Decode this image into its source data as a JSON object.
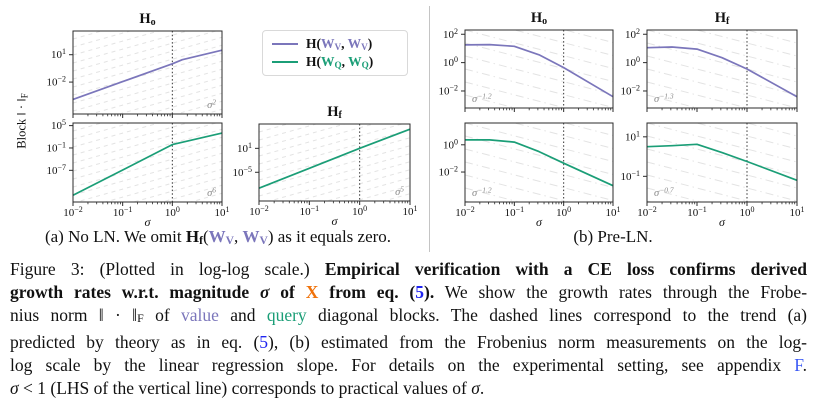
{
  "colors": {
    "purple": "#7b76bb",
    "teal": "#1b9e77",
    "orange_x": "#f0720a",
    "blue_ref": "#1f24f0",
    "blue_link": "#3b59f5",
    "hatch_gray": "#e3e3e3",
    "axis_black": "#2b2b2b",
    "trend_gray": "#8a8a8a"
  },
  "figure": {
    "ylabel": {
      "text": "Block ‖ · ‖",
      "sub": "F"
    },
    "legend": {
      "items": [
        {
          "color_key": "purple",
          "name": "H(W_V, W_V)",
          "segments": [
            {
              "t": "H(",
              "c": "b"
            },
            {
              "t": "W",
              "c": "wp"
            },
            {
              "t": "V",
              "c": "wps"
            },
            {
              "t": ", ",
              "c": "b"
            },
            {
              "t": "W",
              "c": "wp"
            },
            {
              "t": "V",
              "c": "wps"
            },
            {
              "t": ")",
              "c": "b"
            }
          ]
        },
        {
          "color_key": "teal",
          "name": "H(W_Q, W_Q)",
          "segments": [
            {
              "t": "H(",
              "c": "b"
            },
            {
              "t": "W",
              "c": "wt"
            },
            {
              "t": "Q",
              "c": "wts"
            },
            {
              "t": ", ",
              "c": "b"
            },
            {
              "t": "W",
              "c": "wt"
            },
            {
              "t": "Q",
              "c": "wts"
            },
            {
              "t": ")",
              "c": "b"
            }
          ]
        }
      ]
    },
    "subcaptions": {
      "a": {
        "segments": [
          {
            "t": "(a) No LN. We omit ",
            "c": "n"
          },
          {
            "t": "H",
            "c": "b"
          },
          {
            "t": "f",
            "c": "bsb"
          },
          {
            "t": "(",
            "c": "n"
          },
          {
            "t": "W",
            "c": "wp"
          },
          {
            "t": "V",
            "c": "wps"
          },
          {
            "t": ", ",
            "c": "n"
          },
          {
            "t": "W",
            "c": "wp"
          },
          {
            "t": "V",
            "c": "wps"
          },
          {
            "t": ") as it equals zero.",
            "c": "n"
          }
        ]
      },
      "b": {
        "segments": [
          {
            "t": "(b) Pre-LN.",
            "c": "n"
          }
        ]
      }
    }
  },
  "chart_data": {
    "type": "line",
    "scale": "log-log",
    "xlabel": "σ",
    "x_ticks_exp": [
      -2,
      -1,
      0,
      1
    ],
    "vline_exp": 0,
    "panels": [
      {
        "id": "a1",
        "group": "a",
        "title": {
          "main": "H",
          "sub": "o"
        },
        "series_name": "H(W_V, W_V)",
        "color_key": "purple",
        "ylim_exp": [
          -5.5,
          3.6
        ],
        "y_ticks_exp": [
          1,
          -2
        ],
        "x_exp": [
          -2,
          -1,
          0,
          0.2,
          1
        ],
        "y_exp": [
          -3.9,
          -1.95,
          0.0,
          0.45,
          1.5
        ],
        "trend_base": "σ",
        "trend_exp": "2",
        "trend_corner": "br",
        "x_labeled": false,
        "hatch": "up"
      },
      {
        "id": "a2",
        "group": "a",
        "title": null,
        "series_name": "H(W_Q, W_Q)",
        "color_key": "teal",
        "ylim_exp": [
          -15.5,
          5.7
        ],
        "y_ticks_exp": [
          5,
          -1,
          -7
        ],
        "x_exp": [
          -2,
          -1,
          0,
          1
        ],
        "y_exp": [
          -13.7,
          -6.9,
          -0.1,
          3.0
        ],
        "trend_base": "σ",
        "trend_exp": "6",
        "trend_corner": "br",
        "x_labeled": true,
        "hatch": "up"
      },
      {
        "id": "a3",
        "group": "a",
        "title": {
          "main": "H",
          "sub": "f"
        },
        "series_name": "H(W_Q, W_Q)",
        "color_key": "teal",
        "ylim_exp": [
          -12.2,
          7.1
        ],
        "y_ticks_exp": [
          1,
          -5
        ],
        "x_exp": [
          -2,
          -1,
          0,
          1
        ],
        "y_exp": [
          -9.0,
          -4.0,
          1.0,
          5.8
        ],
        "trend_base": "σ",
        "trend_exp": "5",
        "trend_corner": "br",
        "x_labeled": true,
        "hatch": "up"
      },
      {
        "id": "b1",
        "group": "b",
        "title": {
          "main": "H",
          "sub": "o"
        },
        "series_name": "H(W_V, W_V)",
        "color_key": "purple",
        "ylim_exp": [
          -3.2,
          2.3
        ],
        "y_ticks_exp": [
          2,
          0,
          -2
        ],
        "x_exp": [
          -2,
          -1.5,
          -1,
          -0.5,
          0,
          1
        ],
        "y_exp": [
          1.25,
          1.27,
          1.15,
          0.55,
          -0.35,
          -2.4
        ],
        "trend_base": "σ",
        "trend_exp": "−1.2",
        "trend_corner": "bl",
        "x_labeled": false,
        "hatch": "down"
      },
      {
        "id": "b2",
        "group": "b",
        "title": {
          "main": "H",
          "sub": "f"
        },
        "series_name": "H(W_V, W_V)",
        "color_key": "purple",
        "ylim_exp": [
          -3.2,
          2.3
        ],
        "y_ticks_exp": [
          2,
          0,
          -2
        ],
        "x_exp": [
          -2,
          -1.5,
          -1,
          -0.5,
          0,
          1
        ],
        "y_exp": [
          1.05,
          1.1,
          0.95,
          0.35,
          -0.45,
          -2.4
        ],
        "trend_base": "σ",
        "trend_exp": "−1.3",
        "trend_corner": "bl",
        "x_labeled": false,
        "hatch": "down"
      },
      {
        "id": "b3",
        "group": "b",
        "title": null,
        "series_name": "H(W_Q, W_Q)",
        "color_key": "teal",
        "ylim_exp": [
          -4.2,
          1.6
        ],
        "y_ticks_exp": [
          0,
          -2
        ],
        "x_exp": [
          -2,
          -1.5,
          -1,
          -0.5,
          0,
          1
        ],
        "y_exp": [
          0.36,
          0.36,
          0.2,
          -0.5,
          -1.35,
          -3.0
        ],
        "trend_base": "σ",
        "trend_exp": "−1.2",
        "trend_corner": "bl",
        "x_labeled": true,
        "hatch": "down"
      },
      {
        "id": "b4",
        "group": "b",
        "title": null,
        "series_name": "H(W_Q, W_Q)",
        "color_key": "teal",
        "ylim_exp": [
          -2.3,
          1.7
        ],
        "y_ticks_exp": [
          1,
          -1
        ],
        "x_exp": [
          -2,
          -1.5,
          -1,
          -0.5,
          0,
          1
        ],
        "y_exp": [
          0.5,
          0.55,
          0.62,
          0.2,
          -0.25,
          -1.2
        ],
        "trend_base": "σ",
        "trend_exp": "−0.7",
        "trend_corner": "bl",
        "x_labeled": true,
        "hatch": "down"
      }
    ]
  },
  "caption": {
    "lines": [
      {
        "segments": [
          {
            "t": "Figure 3: (Plotted in log-log scale.) ",
            "c": "n"
          },
          {
            "t": "Empirical verification with a CE loss confirms derived",
            "c": "b"
          }
        ]
      },
      {
        "segments": [
          {
            "t": "growth rates w.r.t. magnitude ",
            "c": "b"
          },
          {
            "t": "σ",
            "c": "bi"
          },
          {
            "t": " of ",
            "c": "b"
          },
          {
            "t": "X",
            "c": "bo"
          },
          {
            "t": " from eq. (",
            "c": "b"
          },
          {
            "t": "5",
            "c": "bb"
          },
          {
            "t": ").",
            "c": "b"
          },
          {
            "t": " We show the growth rates through the Frobe-",
            "c": "n"
          }
        ]
      },
      {
        "segments": [
          {
            "t": "nius norm ‖ · ‖",
            "c": "n"
          },
          {
            "t": "F",
            "c": "sb"
          },
          {
            "t": " of ",
            "c": "n"
          },
          {
            "t": "value",
            "c": "pu"
          },
          {
            "t": " and ",
            "c": "n"
          },
          {
            "t": "query",
            "c": "te"
          },
          {
            "t": " diagonal blocks. The dashed lines correspond to the trend (a)",
            "c": "n"
          }
        ]
      },
      {
        "segments": [
          {
            "t": "predicted by theory as in eq. (",
            "c": "n"
          },
          {
            "t": "5",
            "c": "bl"
          },
          {
            "t": "), (b) estimated from the Frobenius norm measurements on the log-",
            "c": "n"
          }
        ]
      },
      {
        "segments": [
          {
            "t": "log scale by the linear regression slope. For details on the experimental setting, see appendix ",
            "c": "n"
          },
          {
            "t": "F",
            "c": "blf"
          },
          {
            "t": ".",
            "c": "n"
          }
        ]
      },
      {
        "segments": [
          {
            "t": "σ",
            "c": "i"
          },
          {
            "t": " < 1 (LHS of the vertical line) corresponds to practical values of ",
            "c": "n"
          },
          {
            "t": "σ",
            "c": "i"
          },
          {
            "t": ".",
            "c": "n"
          }
        ]
      }
    ]
  }
}
